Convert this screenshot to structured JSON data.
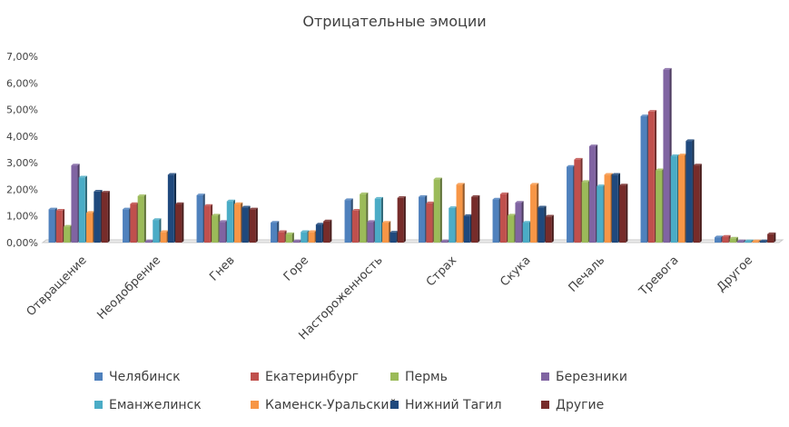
{
  "chart_data": {
    "type": "bar",
    "title": "Отрицательные эмоции",
    "xlabel": "",
    "ylabel": "",
    "ylim": [
      0,
      7
    ],
    "y_ticks": [
      "0,00%",
      "1,00%",
      "2,00%",
      "3,00%",
      "4,00%",
      "5,00%",
      "6,00%",
      "7,00%"
    ],
    "grid": false,
    "legend_position": "bottom",
    "categories": [
      "Отвращение",
      "Неодобрение",
      "Гнев",
      "Горе",
      "Настороженность",
      "Страх",
      "Скука",
      "Печаль",
      "Тревога",
      "Другое"
    ],
    "series": [
      {
        "name": "Челябинск",
        "color": "#4F81BD",
        "values": [
          1.25,
          1.25,
          1.78,
          0.75,
          1.6,
          1.72,
          1.62,
          2.85,
          4.75,
          0.2
        ]
      },
      {
        "name": "Екатеринбург",
        "color": "#C0504D",
        "values": [
          1.2,
          1.45,
          1.38,
          0.4,
          1.2,
          1.48,
          1.82,
          3.12,
          4.92,
          0.22
        ]
      },
      {
        "name": "Пермь",
        "color": "#9BBB59",
        "values": [
          0.6,
          1.75,
          1.02,
          0.32,
          1.82,
          2.38,
          1.02,
          2.28,
          2.72,
          0.15
        ]
      },
      {
        "name": "Березники",
        "color": "#8064A2",
        "values": [
          2.9,
          0.05,
          0.78,
          0.05,
          0.78,
          0.05,
          1.5,
          3.62,
          6.5,
          0.05
        ]
      },
      {
        "name": "Еманжелинск",
        "color": "#4BACC6",
        "values": [
          2.45,
          0.85,
          1.55,
          0.4,
          1.65,
          1.3,
          0.75,
          2.12,
          3.25,
          0.05
        ]
      },
      {
        "name": "Каменск-Уральский",
        "color": "#F79646",
        "values": [
          1.12,
          0.4,
          1.45,
          0.4,
          0.75,
          2.18,
          2.18,
          2.55,
          3.28,
          0.05
        ]
      },
      {
        "name": "Нижний Тагил",
        "color": "#1F497D",
        "values": [
          1.92,
          2.55,
          1.32,
          0.68,
          0.38,
          1.0,
          1.32,
          2.55,
          3.82,
          0.05
        ]
      },
      {
        "name": "Другие",
        "color": "#772C2A",
        "values": [
          1.88,
          1.45,
          1.25,
          0.8,
          1.68,
          1.72,
          0.98,
          2.15,
          2.9,
          0.32
        ]
      }
    ]
  }
}
